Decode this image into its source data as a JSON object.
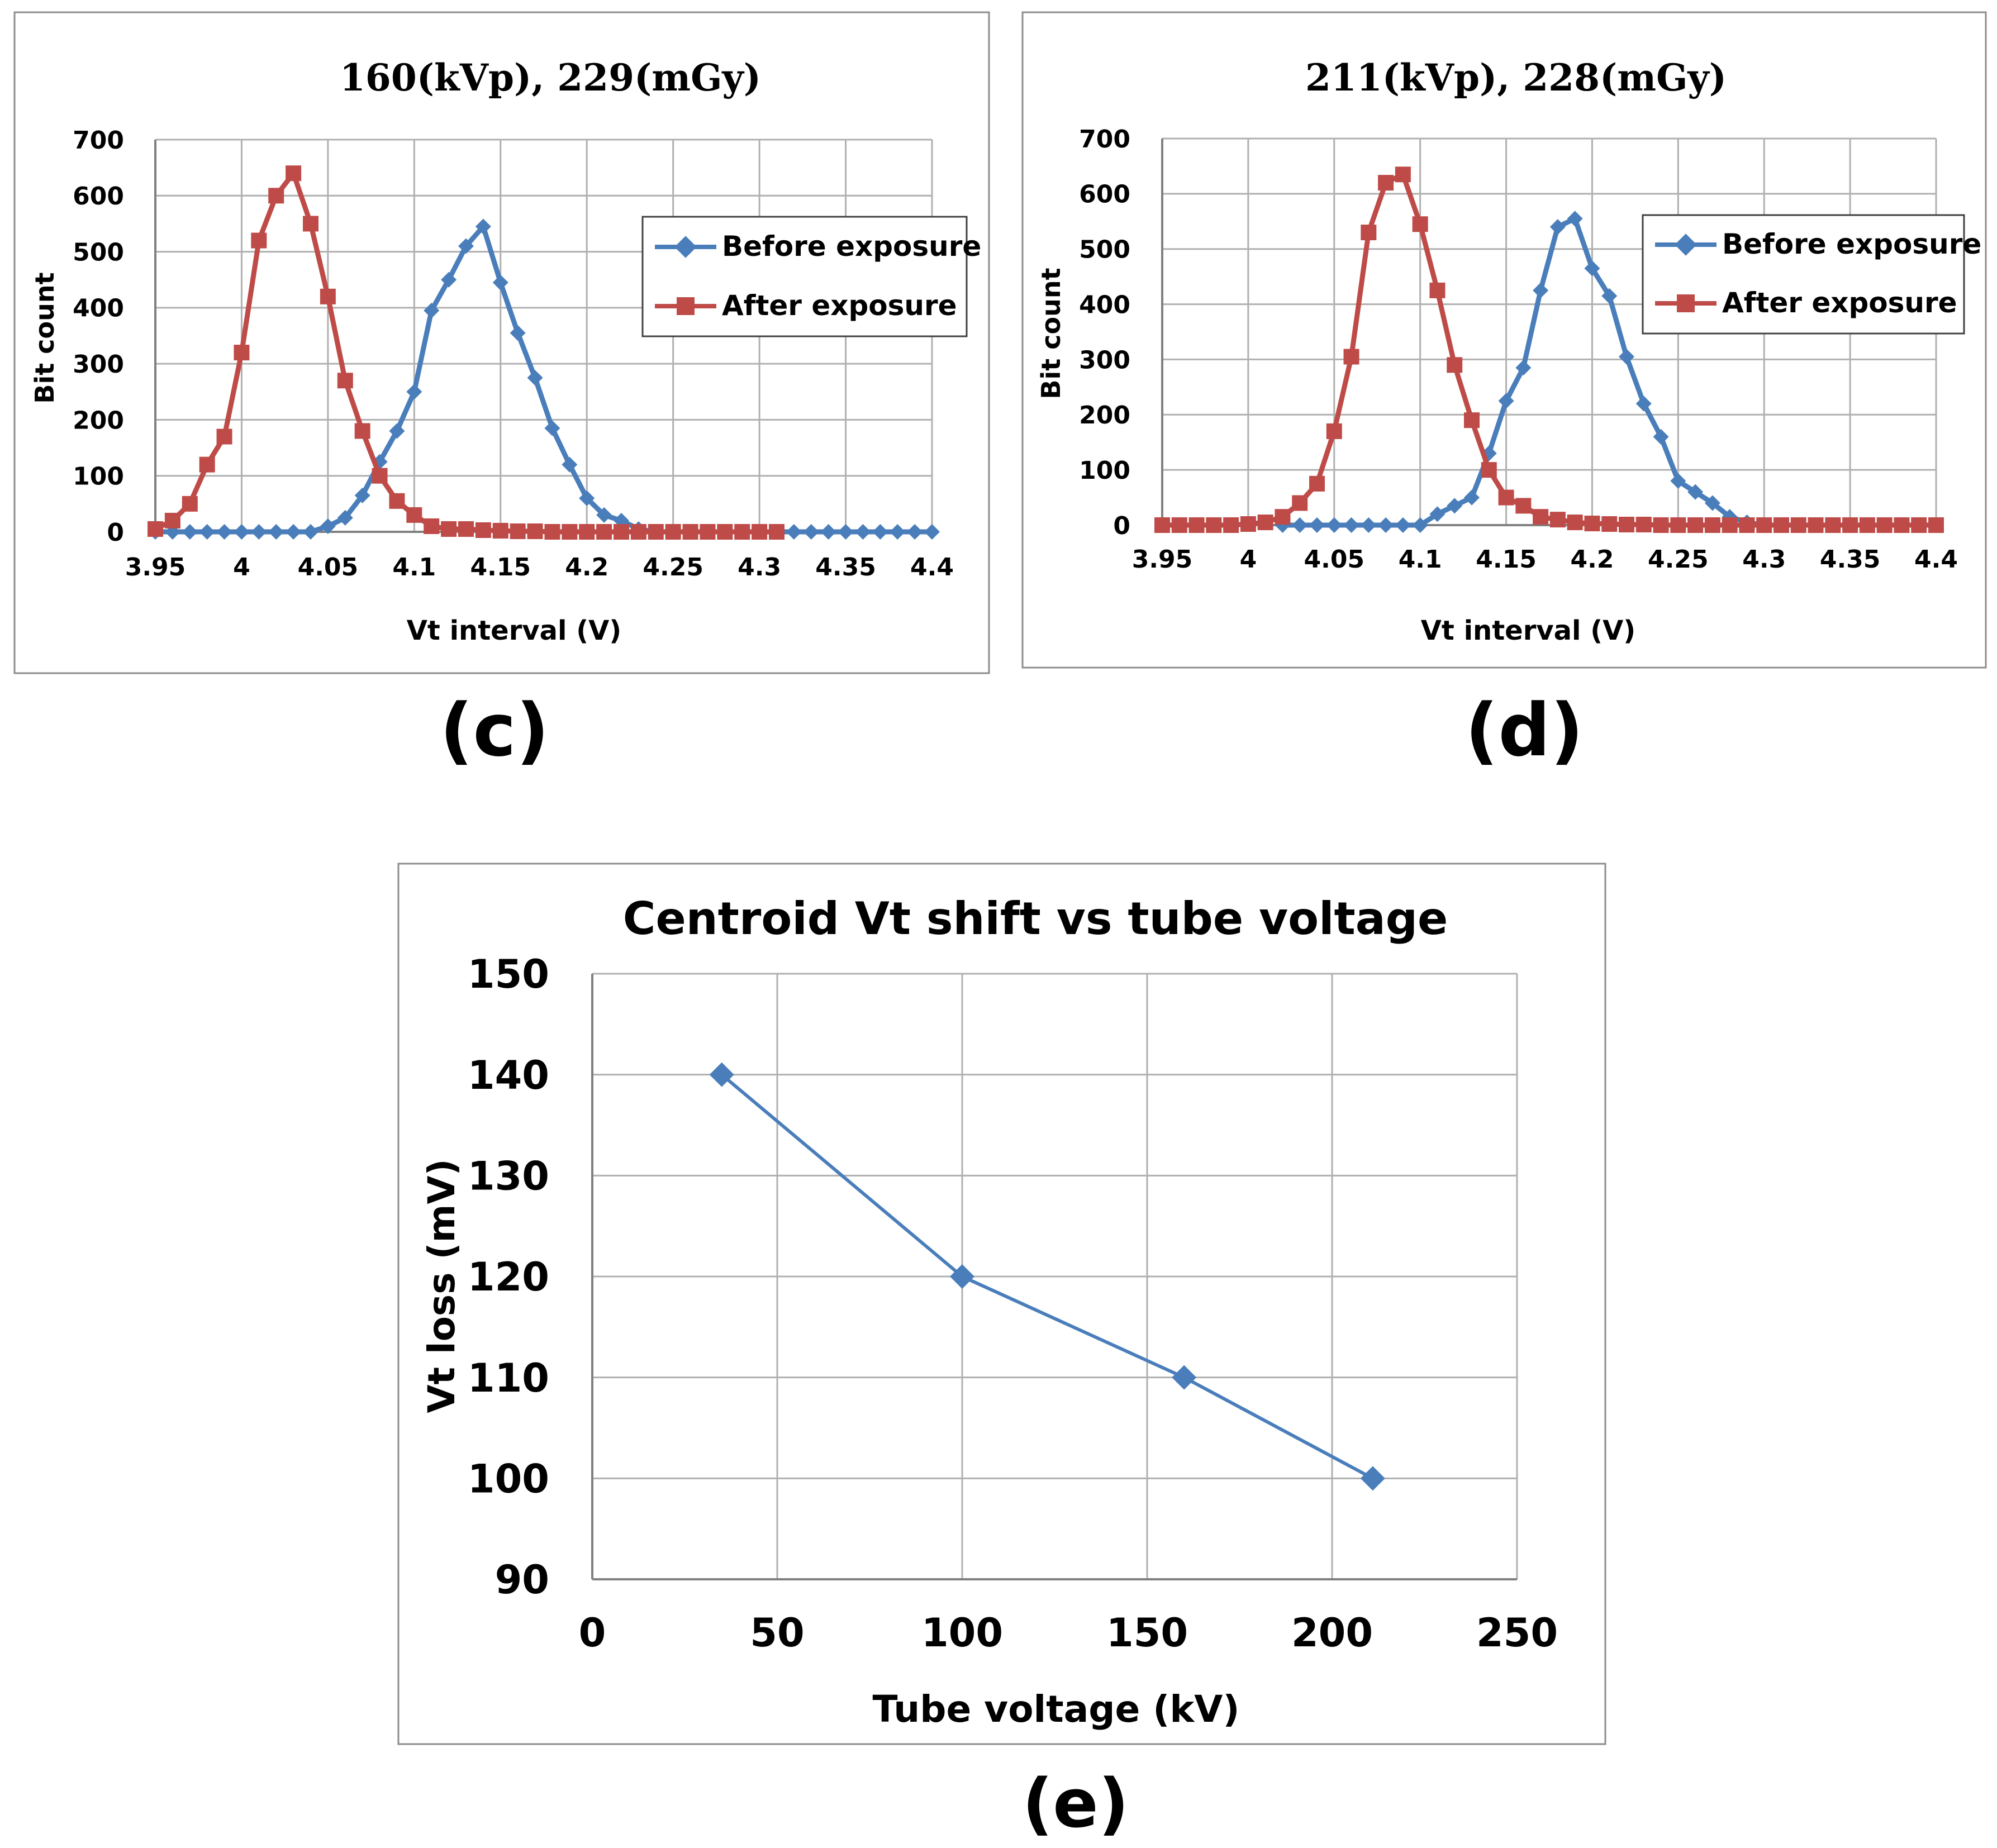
{
  "chart_data": [
    {
      "type": "line",
      "panel_label": "(c)",
      "title": "160(kVp), 229(mGy)",
      "xlabel": "Vt interval (V)",
      "ylabel": "Bit count",
      "xlim": [
        3.95,
        4.4
      ],
      "ylim": [
        0,
        700
      ],
      "x_ticks": [
        3.95,
        4.0,
        4.05,
        4.1,
        4.15,
        4.2,
        4.25,
        4.3,
        4.35,
        4.4
      ],
      "x_tick_labels": [
        "3.95",
        "4",
        "4.05",
        "4.1",
        "4.15",
        "4.2",
        "4.25",
        "4.3",
        "4.35",
        "4.4"
      ],
      "y_ticks": [
        0,
        100,
        200,
        300,
        400,
        500,
        600,
        700
      ],
      "y_tick_labels": [
        "0",
        "100",
        "200",
        "300",
        "400",
        "500",
        "600",
        "700"
      ],
      "legend": "right",
      "grid": true,
      "series": [
        {
          "name": "Before exposure",
          "color": "#4a7ebb",
          "marker": "diamond",
          "x": [
            3.95,
            3.96,
            3.97,
            3.98,
            3.99,
            4.0,
            4.01,
            4.02,
            4.03,
            4.04,
            4.05,
            4.06,
            4.07,
            4.08,
            4.09,
            4.1,
            4.11,
            4.12,
            4.13,
            4.14,
            4.15,
            4.16,
            4.17,
            4.18,
            4.19,
            4.2,
            4.21,
            4.22,
            4.23,
            4.24,
            4.25,
            4.26,
            4.27,
            4.28,
            4.29,
            4.3,
            4.31,
            4.32,
            4.33,
            4.34,
            4.35,
            4.36,
            4.37,
            4.38,
            4.39,
            4.4
          ],
          "values": [
            0,
            0,
            0,
            0,
            0,
            0,
            0,
            0,
            0,
            0,
            10,
            25,
            65,
            125,
            180,
            250,
            395,
            450,
            510,
            545,
            445,
            355,
            275,
            185,
            120,
            60,
            30,
            20,
            5,
            0,
            0,
            0,
            0,
            0,
            0,
            0,
            0,
            0,
            0,
            0,
            0,
            0,
            0,
            0,
            0,
            0
          ]
        },
        {
          "name": "After exposure",
          "color": "#be4b48",
          "marker": "square",
          "x": [
            3.95,
            3.96,
            3.97,
            3.98,
            3.99,
            4.0,
            4.01,
            4.02,
            4.03,
            4.04,
            4.05,
            4.06,
            4.07,
            4.08,
            4.09,
            4.1,
            4.11,
            4.12,
            4.13,
            4.14,
            4.15,
            4.16,
            4.17,
            4.18,
            4.19,
            4.2,
            4.21,
            4.22,
            4.23,
            4.24,
            4.25,
            4.26,
            4.27,
            4.28,
            4.29,
            4.3,
            4.31
          ],
          "values": [
            5,
            20,
            50,
            120,
            170,
            320,
            520,
            600,
            640,
            550,
            420,
            270,
            180,
            100,
            55,
            30,
            10,
            5,
            5,
            3,
            2,
            1,
            1,
            0,
            0,
            0,
            0,
            0,
            0,
            0,
            0,
            0,
            0,
            0,
            0,
            0,
            0
          ]
        }
      ]
    },
    {
      "type": "line",
      "panel_label": "(d)",
      "title": "211(kVp), 228(mGy)",
      "xlabel": "Vt interval (V)",
      "ylabel": "Bit count",
      "xlim": [
        3.95,
        4.4
      ],
      "ylim": [
        0,
        700
      ],
      "x_ticks": [
        3.95,
        4.0,
        4.05,
        4.1,
        4.15,
        4.2,
        4.25,
        4.3,
        4.35,
        4.4
      ],
      "x_tick_labels": [
        "3.95",
        "4",
        "4.05",
        "4.1",
        "4.15",
        "4.2",
        "4.25",
        "4.3",
        "4.35",
        "4.4"
      ],
      "y_ticks": [
        0,
        100,
        200,
        300,
        400,
        500,
        600,
        700
      ],
      "y_tick_labels": [
        "0",
        "100",
        "200",
        "300",
        "400",
        "500",
        "600",
        "700"
      ],
      "legend": "right",
      "grid": true,
      "series": [
        {
          "name": "Before exposure",
          "color": "#4a7ebb",
          "marker": "diamond",
          "x": [
            4.02,
            4.03,
            4.04,
            4.05,
            4.06,
            4.07,
            4.08,
            4.09,
            4.1,
            4.11,
            4.12,
            4.13,
            4.14,
            4.15,
            4.16,
            4.17,
            4.18,
            4.19,
            4.2,
            4.21,
            4.22,
            4.23,
            4.24,
            4.25,
            4.26,
            4.27,
            4.28,
            4.29,
            4.3,
            4.31,
            4.32,
            4.33,
            4.34,
            4.35,
            4.36,
            4.37,
            4.38,
            4.39,
            4.4
          ],
          "values": [
            0,
            0,
            0,
            0,
            0,
            0,
            0,
            0,
            0,
            20,
            35,
            50,
            130,
            225,
            285,
            425,
            540,
            555,
            465,
            415,
            305,
            220,
            160,
            80,
            60,
            40,
            15,
            5,
            0,
            0,
            0,
            0,
            0,
            0,
            0,
            0,
            0,
            0,
            0
          ]
        },
        {
          "name": "After exposure",
          "color": "#be4b48",
          "marker": "square",
          "x": [
            3.95,
            3.96,
            3.97,
            3.98,
            3.99,
            4.0,
            4.01,
            4.02,
            4.03,
            4.04,
            4.05,
            4.06,
            4.07,
            4.08,
            4.09,
            4.1,
            4.11,
            4.12,
            4.13,
            4.14,
            4.15,
            4.16,
            4.17,
            4.18,
            4.19,
            4.2,
            4.21,
            4.22,
            4.23,
            4.24,
            4.25,
            4.26,
            4.27,
            4.28,
            4.29,
            4.3,
            4.31,
            4.32,
            4.33,
            4.34,
            4.35,
            4.36,
            4.37,
            4.38,
            4.39,
            4.4
          ],
          "values": [
            0,
            0,
            0,
            0,
            0,
            2,
            5,
            15,
            40,
            75,
            170,
            305,
            530,
            620,
            635,
            545,
            425,
            290,
            190,
            100,
            50,
            35,
            15,
            10,
            5,
            3,
            2,
            1,
            1,
            0,
            0,
            0,
            0,
            0,
            0,
            0,
            0,
            0,
            0,
            0,
            0,
            0,
            0,
            0,
            0,
            0
          ]
        }
      ]
    },
    {
      "type": "line",
      "panel_label": "(e)",
      "title": "Centroid Vt shift vs tube voltage",
      "xlabel": "Tube voltage (kV)",
      "ylabel": "Vt loss (mV)",
      "xlim": [
        0,
        250
      ],
      "ylim": [
        90,
        150
      ],
      "x_ticks": [
        0,
        50,
        100,
        150,
        200,
        250
      ],
      "x_tick_labels": [
        "0",
        "50",
        "100",
        "150",
        "200",
        "250"
      ],
      "y_ticks": [
        90,
        100,
        110,
        120,
        130,
        140,
        150
      ],
      "y_tick_labels": [
        "90",
        "100",
        "110",
        "120",
        "130",
        "140",
        "150"
      ],
      "grid": true,
      "series": [
        {
          "name": "Vt loss",
          "color": "#4a7ebb",
          "marker": "diamond",
          "x": [
            35,
            100,
            160,
            211
          ],
          "values": [
            140,
            120,
            110,
            100
          ]
        }
      ]
    }
  ]
}
